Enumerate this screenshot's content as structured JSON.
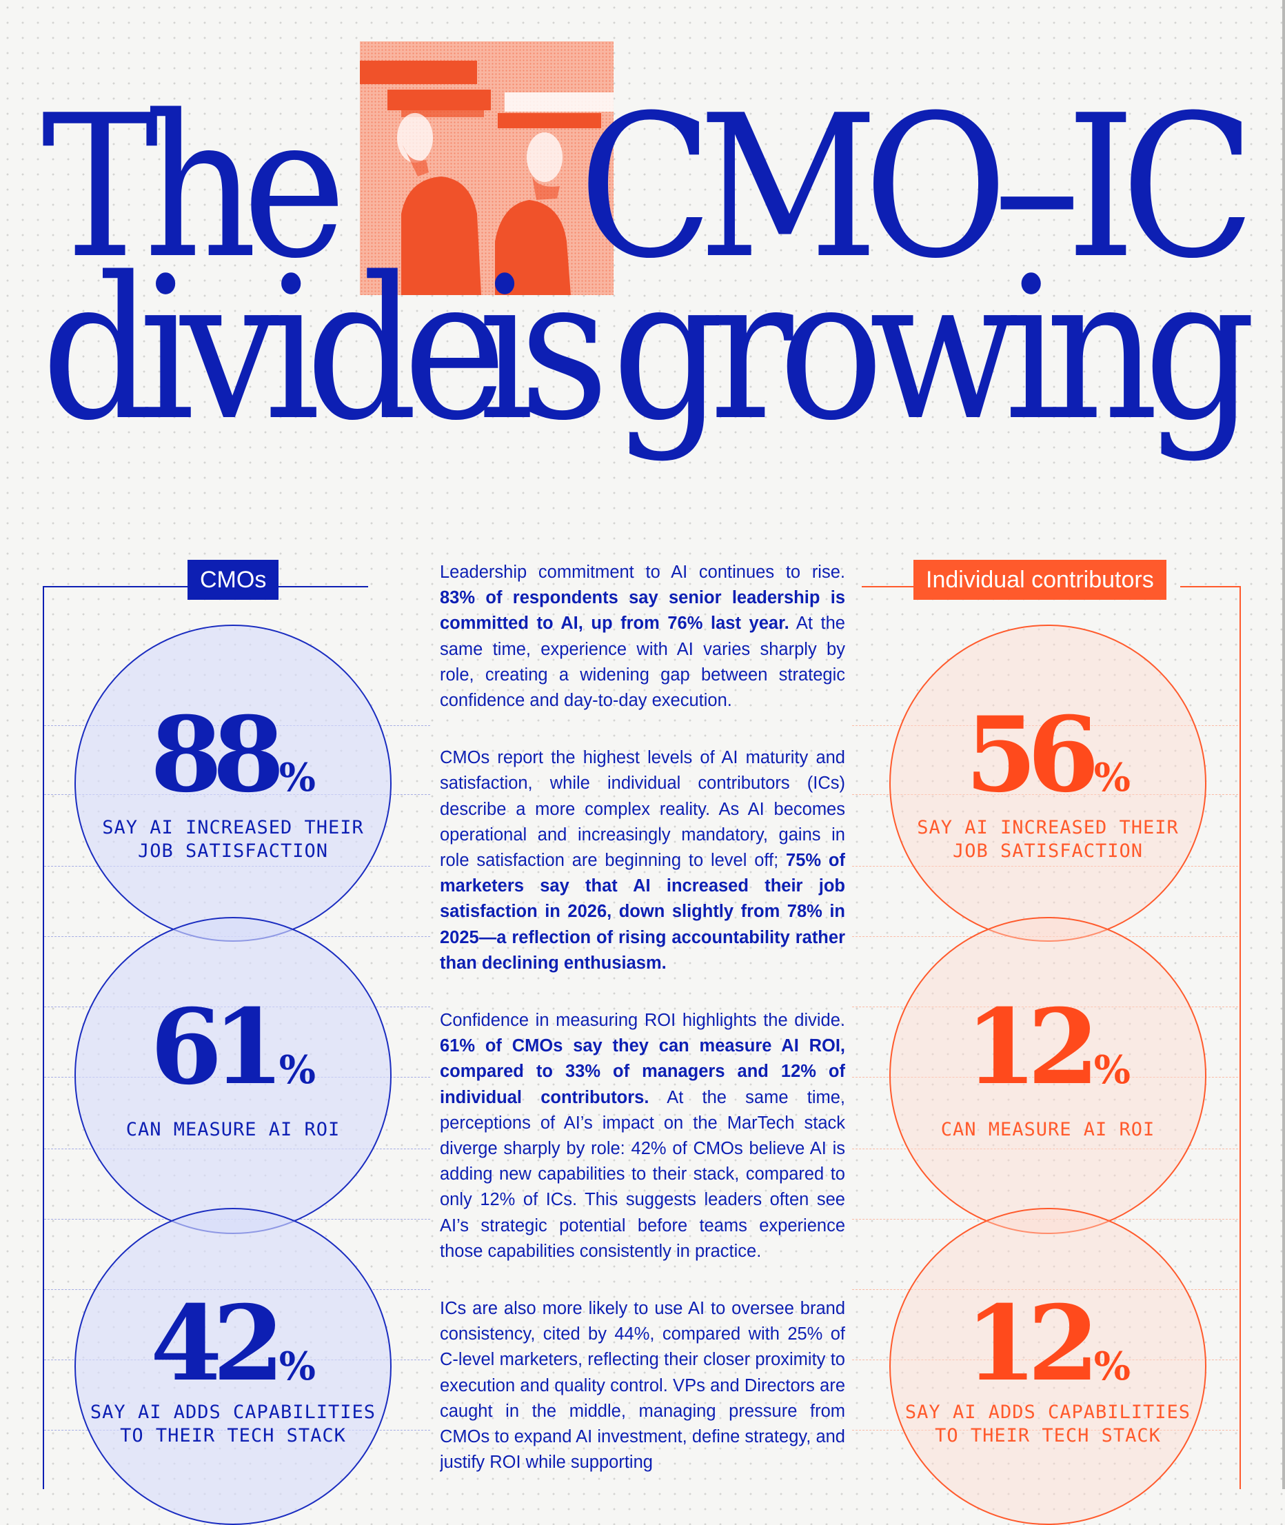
{
  "headline": {
    "word1": "The",
    "word2": "CMO–IC",
    "word3": "divide",
    "word4": "is",
    "word5": "growing"
  },
  "hero_image": {
    "description_icon": "two-figures-illustration-icon",
    "colors": {
      "background": "#f9b5a0",
      "figure": "#f0522a"
    }
  },
  "cmo_column": {
    "tag": "CMOs",
    "color": "#0d1fb3",
    "stats": [
      {
        "value": "88",
        "unit": "%",
        "label": "SAY AI INCREASED THEIR\nJOB SATISFACTION"
      },
      {
        "value": "61",
        "unit": "%",
        "label": "CAN MEASURE AI ROI"
      },
      {
        "value": "42",
        "unit": "%",
        "label": "SAY AI ADDS CAPABILITIES\nTO THEIR TECH STACK"
      }
    ]
  },
  "ic_column": {
    "tag": "Individual contributors",
    "color": "#ff5a2c",
    "stats": [
      {
        "value": "56",
        "unit": "%",
        "label": "SAY AI INCREASED THEIR\nJOB SATISFACTION"
      },
      {
        "value": "12",
        "unit": "%",
        "label": "CAN MEASURE AI ROI"
      },
      {
        "value": "12",
        "unit": "%",
        "label": "SAY AI ADDS CAPABILITIES\nTO THEIR TECH STACK"
      }
    ]
  },
  "body": {
    "p1_a": "Leadership commitment to AI continues to rise. ",
    "p1_b": "83% of respondents say senior leadership is committed to AI, up from 76% last year.",
    "p1_c": " At the same time, experience with AI varies sharply by role, creating a widening gap between strategic confidence and day-to-day execution.",
    "p2_a": "CMOs report the highest levels of AI maturity and satisfaction, while individual contributors (ICs) describe a more complex reality. As AI becomes operational and increasingly mandatory, gains in role satisfaction are beginning to level off; ",
    "p2_b": "75% of marketers say that AI increased their job satisfaction in 2026, down slightly from 78% in 2025—a reflection of rising accountability rather than declining enthusiasm.",
    "p3_a": "Confidence in measuring ROI highlights the divide. ",
    "p3_b": "61% of CMOs say they can measure AI ROI, compared to 33% of managers and 12% of individual contributors.",
    "p3_c": " At the same time, perceptions of AI’s impact on the MarTech stack diverge sharply by role: 42% of CMOs believe AI is adding new capabilities to their stack, compared to only 12% of ICs. This suggests leaders often see AI’s strategic potential before teams experience those capabilities consistently in practice.",
    "p4_a": "ICs are also more likely to use AI to oversee brand consistency, cited by 44%, compared with 25% of C-level marketers, reflecting their closer proximity to execution and quality control. VPs and Directors are caught in the middle, managing pressure from CMOs to expand AI investment, define strategy, and justify ROI while supporting"
  }
}
